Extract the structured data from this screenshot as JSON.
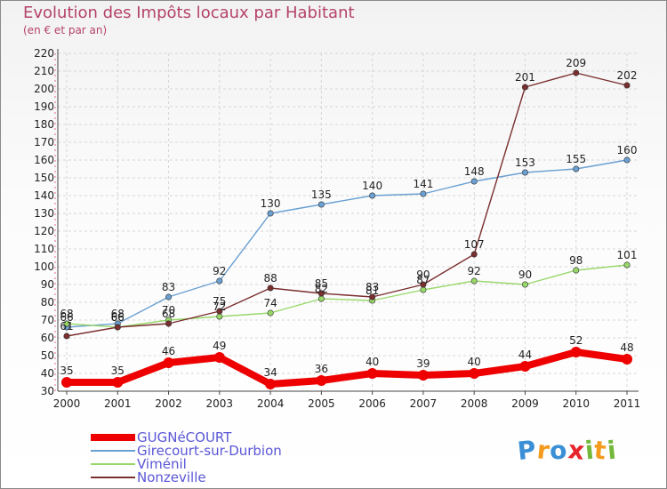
{
  "title": "Evolution des Impôts locaux par Habitant",
  "subtitle": "(en € et par an)",
  "brand": {
    "letters": [
      "P",
      "r",
      "o",
      "x",
      "i",
      "t",
      "i"
    ],
    "colors": [
      "#3a8fd6",
      "#f39a1f",
      "#3a8fd6",
      "#e6242b",
      "#73b83a",
      "#f39a1f",
      "#73b83a"
    ]
  },
  "chart_data": {
    "type": "line",
    "x": [
      "2000",
      "2001",
      "2002",
      "2003",
      "2004",
      "2005",
      "2006",
      "2007",
      "2008",
      "2009",
      "2010",
      "2011"
    ],
    "ylim": [
      30,
      220
    ],
    "yticks": [
      "30",
      "40",
      "50",
      "60",
      "70",
      "80",
      "90",
      "100",
      "110",
      "120",
      "130",
      "140",
      "150",
      "160",
      "170",
      "180",
      "190",
      "200",
      "210",
      "220"
    ],
    "grid": true,
    "legend": "bottom-left",
    "series": [
      {
        "name": "GUGNéCOURT",
        "color": "#ee0000",
        "values": [
          35,
          35,
          46,
          49,
          34,
          36,
          40,
          39,
          40,
          44,
          52,
          48
        ],
        "labels": [
          "35",
          "35",
          "46",
          "49",
          "34",
          "36",
          "40",
          "39",
          "40",
          "44",
          "52",
          "48"
        ]
      },
      {
        "name": "Girecourt-sur-Durbion",
        "color": "#6aa0d2",
        "values": [
          66,
          68,
          83,
          92,
          130,
          135,
          140,
          141,
          148,
          153,
          155,
          160
        ],
        "labels": [
          "66",
          "68",
          "83",
          "92",
          "130",
          "135",
          "140",
          "141",
          "148",
          "153",
          "155",
          "160"
        ]
      },
      {
        "name": "Viménil",
        "color": "#98d86a",
        "values": [
          68,
          66,
          70,
          72,
          74,
          82,
          81,
          87,
          92,
          90,
          98,
          101
        ],
        "labels": [
          "68",
          "66",
          "70",
          "72",
          "74",
          "82",
          "81",
          "87",
          "92",
          "90",
          "98",
          "101"
        ]
      },
      {
        "name": "Nonzeville",
        "color": "#7a2e2e",
        "values": [
          61,
          66,
          68,
          75,
          88,
          85,
          83,
          90,
          107,
          201,
          209,
          202
        ],
        "labels": [
          "61",
          "66",
          "68",
          "75",
          "88",
          "85",
          "83",
          "90",
          "107",
          "201",
          "209",
          "202"
        ]
      }
    ]
  }
}
